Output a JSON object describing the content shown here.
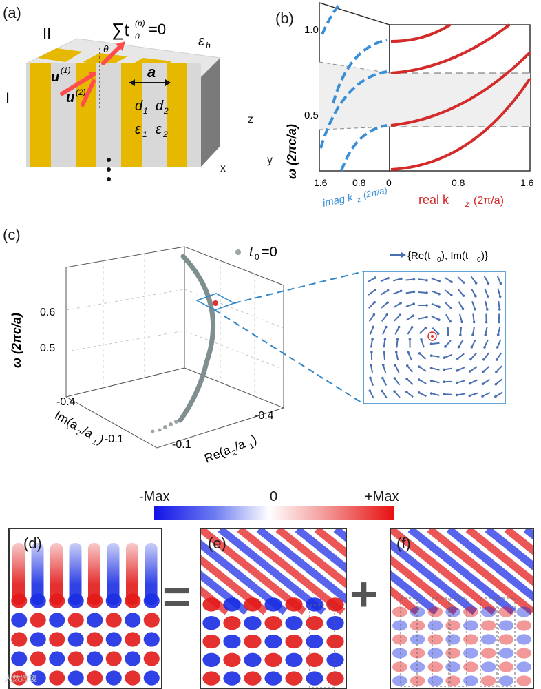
{
  "panel_labels": [
    "(a)",
    "(b)",
    "(c)",
    "(d)",
    "(e)",
    "(f)"
  ],
  "panel_a": {
    "equation": "∑t",
    "equation_sub": "0",
    "equation_sup": "(n)",
    "equation_rhs": "=0",
    "region_I": "I",
    "region_II": "II",
    "eps_b": "ε",
    "eps_b_sub": "b",
    "theta": "θ",
    "u1": "u",
    "u1_sup": "(1)",
    "u2": "u",
    "u2_sup": "(2)",
    "period": "a",
    "d1": "d",
    "d1_sub": "1",
    "d2": "d",
    "d2_sub": "2",
    "eps1": "ε",
    "eps1_sub": "1",
    "eps2": "ε",
    "eps2_sub": "2",
    "axis_x": "x",
    "axis_y": "y",
    "axis_z": "z",
    "colors": {
      "gold": "#e6b800",
      "silver": "#d8d8d8",
      "side": "#7a7a7a",
      "arrow": "#ff4d4d"
    }
  },
  "panel_b": {
    "ylabel": "ω (2πc/a)",
    "yticks": [
      "1.0",
      "0.5"
    ],
    "imag_ticks": [
      "1.6",
      "0.8",
      "0"
    ],
    "real_ticks": [
      "0.8",
      "1.6"
    ],
    "imag_label": "imag k",
    "imag_label_sub": "z",
    "imag_label_unit": "(2π/a)",
    "real_label": "real k",
    "real_label_sub": "z",
    "real_label_unit": "(2π/a)",
    "colors": {
      "imag": "#3a8fd6",
      "real": "#d42a2a",
      "gap": "#efefef"
    }
  },
  "panel_c": {
    "legend": "t",
    "legend_sub": "0",
    "legend_rhs": "=0",
    "zlabel": "ω (2πc/a)",
    "zticks": [
      "0.6",
      "0.5"
    ],
    "im_label": "Im(a",
    "im_label_mid": "2",
    "im_label_div": "/a",
    "im_label_end": "1",
    "im_close": ")",
    "im_ticks": [
      "-0.4",
      "-0.1"
    ],
    "re_label": "Re(a",
    "re_label_mid": "2",
    "re_label_div": "/a",
    "re_label_end": "1",
    "re_close": ")",
    "re_ticks": [
      "-0.4",
      "-0.1"
    ],
    "inset_legend": "{Re(t",
    "inset_legend_sub": "0",
    "inset_legend_mid": "), Im(t",
    "inset_legend_sub2": "0",
    "inset_legend_end": ")}",
    "colors": {
      "curve": "#7f8f8f",
      "point": "#e03030",
      "inset": "#2f86c8",
      "arrow": "#4a6fb0"
    }
  },
  "colorbar": {
    "min_label": "-Max",
    "mid_label": "0",
    "max_label": "+Max"
  },
  "operators": {
    "equals": "=",
    "plus": "+"
  },
  "watermark": "大数跨境"
}
